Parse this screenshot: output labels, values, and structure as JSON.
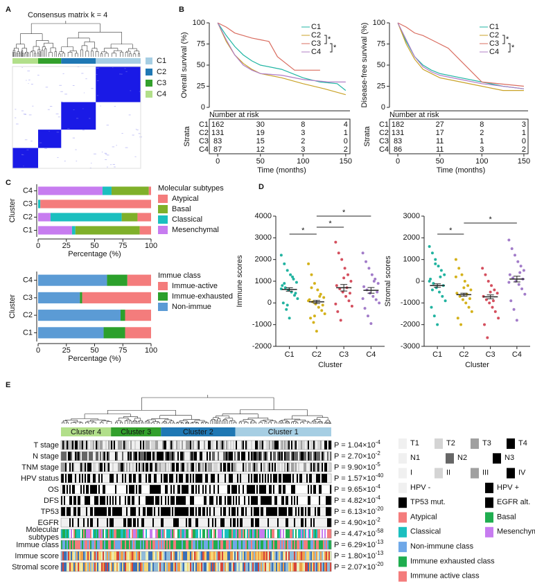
{
  "chart_data": [
    {
      "type": "heatmap",
      "panel": "A",
      "title": "Consensus matrix k = 4",
      "categories": [
        "C1",
        "C2",
        "C3",
        "C4"
      ],
      "colors": [
        "#a6cee3",
        "#1f78b4",
        "#33a02c",
        "#b2df8a"
      ]
    },
    {
      "type": "line",
      "panel": "B",
      "ylabel": "Overall survival (%)",
      "xlabel": "Time (months)",
      "xlim": [
        -5,
        155
      ],
      "xticks": [
        0,
        50,
        100,
        150
      ],
      "ylim": [
        0,
        100
      ],
      "yticks": [
        0,
        25,
        50,
        75,
        100
      ],
      "series": [
        {
          "name": "C1",
          "color": "#1fb5a3",
          "x": [
            0,
            10,
            20,
            30,
            40,
            50,
            75,
            100,
            120,
            140,
            150
          ],
          "values": [
            100,
            85,
            72,
            62,
            55,
            50,
            45,
            35,
            30,
            28,
            20
          ]
        },
        {
          "name": "C2",
          "color": "#c9a227",
          "x": [
            0,
            10,
            20,
            30,
            40,
            50,
            75,
            100,
            125,
            150
          ],
          "values": [
            100,
            78,
            62,
            52,
            45,
            40,
            35,
            28,
            22,
            15
          ]
        },
        {
          "name": "C3",
          "color": "#d96c5f",
          "x": [
            0,
            10,
            20,
            30,
            40,
            50,
            60,
            70,
            90,
            120
          ],
          "values": [
            100,
            95,
            88,
            85,
            82,
            80,
            78,
            60,
            44,
            44
          ]
        },
        {
          "name": "C4",
          "color": "#b07cc6",
          "x": [
            0,
            10,
            20,
            30,
            40,
            50,
            75,
            100,
            130,
            150
          ],
          "values": [
            100,
            80,
            62,
            50,
            44,
            40,
            38,
            33,
            30,
            30
          ]
        }
      ],
      "annotations": [
        "*",
        "*"
      ],
      "risk_title": "Number at risk",
      "risk_label": "Strata",
      "risk": [
        [
          162,
          30,
          8,
          4
        ],
        [
          131,
          19,
          3,
          1
        ],
        [
          83,
          15,
          2,
          0
        ],
        [
          87,
          12,
          3,
          2
        ]
      ]
    },
    {
      "type": "line",
      "ylabel": "Disease-free survival (%)",
      "xlabel": "Time (months)",
      "xlim": [
        -5,
        155
      ],
      "xticks": [
        0,
        50,
        100,
        150
      ],
      "ylim": [
        0,
        100
      ],
      "yticks": [
        0,
        25,
        50,
        75,
        100
      ],
      "series": [
        {
          "name": "C1",
          "color": "#1fb5a3",
          "x": [
            0,
            10,
            20,
            30,
            40,
            50,
            75,
            100,
            125,
            150
          ],
          "values": [
            100,
            78,
            60,
            50,
            44,
            40,
            35,
            30,
            25,
            22
          ]
        },
        {
          "name": "C2",
          "color": "#c9a227",
          "x": [
            0,
            10,
            20,
            30,
            40,
            50,
            75,
            100,
            125,
            150
          ],
          "values": [
            100,
            75,
            57,
            45,
            40,
            35,
            30,
            25,
            20,
            20
          ]
        },
        {
          "name": "C3",
          "color": "#d96c5f",
          "x": [
            0,
            10,
            20,
            30,
            40,
            50,
            60,
            75,
            100,
            150
          ],
          "values": [
            100,
            95,
            88,
            85,
            80,
            75,
            70,
            55,
            30,
            25
          ]
        },
        {
          "name": "C4",
          "color": "#b07cc6",
          "x": [
            0,
            10,
            20,
            30,
            40,
            50,
            75,
            100,
            150
          ],
          "values": [
            100,
            80,
            60,
            48,
            42,
            38,
            33,
            28,
            22
          ]
        }
      ],
      "annotations": [
        "*",
        "*"
      ],
      "risk_title": "Number at risk",
      "risk_label": "Strata",
      "risk": [
        [
          182,
          27,
          8,
          3
        ],
        [
          131,
          17,
          2,
          1
        ],
        [
          83,
          11,
          1,
          0
        ],
        [
          86,
          11,
          3,
          2
        ]
      ]
    },
    {
      "type": "stacked-bar",
      "panel": "C",
      "legend_title": "Molecular subtypes",
      "xlabel": "Percentage (%)",
      "ylabel": "Cluster",
      "categories": [
        "C1",
        "C2",
        "C3",
        "C4"
      ],
      "xlim": [
        0,
        100
      ],
      "xticks": [
        0,
        25,
        50,
        75,
        100
      ],
      "series": [
        {
          "name": "Atypical",
          "color": "#f47c7c",
          "values": [
            10,
            12,
            98,
            2
          ]
        },
        {
          "name": "Basal",
          "color": "#7fb02a",
          "values": [
            57,
            14,
            0,
            33
          ]
        },
        {
          "name": "Classical",
          "color": "#1bbfbf",
          "values": [
            3,
            63,
            2,
            8
          ]
        },
        {
          "name": "Mesenchymal",
          "color": "#c77cf0",
          "values": [
            30,
            11,
            0,
            57
          ]
        }
      ]
    },
    {
      "type": "stacked-bar",
      "legend_title": "Immue class",
      "xlabel": "Percentage (%)",
      "ylabel": "Cluster",
      "categories": [
        "C1",
        "C2",
        "C3",
        "C4"
      ],
      "xlim": [
        0,
        100
      ],
      "xticks": [
        0,
        25,
        50,
        75,
        100
      ],
      "series": [
        {
          "name": "Immue-active",
          "color": "#f47c7c",
          "values": [
            23,
            23,
            61,
            21
          ]
        },
        {
          "name": "Immue-exhausted",
          "color": "#2ca02c",
          "values": [
            19,
            4,
            2,
            18
          ]
        },
        {
          "name": "Non-immue",
          "color": "#5b9bd5",
          "values": [
            58,
            73,
            37,
            61
          ]
        }
      ]
    },
    {
      "type": "dot",
      "panel": "D",
      "ylabel": "Immune scores",
      "xlabel": "Cluster",
      "categories": [
        "C1",
        "C2",
        "C3",
        "C4"
      ],
      "colors": [
        "#21b3a0",
        "#d4b21c",
        "#d44f5e",
        "#a27cc9"
      ],
      "ylim": [
        -2000,
        4000
      ],
      "yticks": [
        -2000,
        -1000,
        0,
        1000,
        2000,
        3000,
        4000
      ],
      "points": [
        [
          2200,
          1800,
          1500,
          1300,
          1100,
          950,
          800,
          700,
          600,
          500,
          350,
          200,
          0,
          -300,
          -700,
          1200,
          450,
          650,
          900,
          -100
        ],
        [
          1800,
          1300,
          900,
          600,
          400,
          250,
          150,
          50,
          -50,
          -200,
          -350,
          -500,
          -700,
          -900,
          -1300,
          300,
          -100,
          100,
          700,
          -600
        ],
        [
          2800,
          2300,
          2000,
          1600,
          1300,
          1000,
          800,
          650,
          500,
          300,
          100,
          -150,
          -400,
          -800,
          1150,
          700,
          450,
          -50
        ],
        [
          2300,
          1900,
          1600,
          1300,
          1100,
          900,
          750,
          600,
          450,
          300,
          150,
          0,
          -250,
          -600,
          -950,
          1000,
          500,
          200
        ]
      ],
      "means": [
        620,
        50,
        700,
        580
      ],
      "errors": [
        80,
        70,
        150,
        130
      ],
      "comparisons": [
        {
          "pair": [
            "C1",
            "C2"
          ],
          "label": "*"
        },
        {
          "pair": [
            "C2",
            "C3"
          ],
          "label": "*"
        },
        {
          "pair": [
            "C2",
            "C4"
          ],
          "label": "*"
        }
      ]
    },
    {
      "type": "dot",
      "ylabel": "Stromal scores",
      "xlabel": "Cluster",
      "categories": [
        "C1",
        "C2",
        "C3",
        "C4"
      ],
      "colors": [
        "#21b3a0",
        "#d4b21c",
        "#d44f5e",
        "#a27cc9"
      ],
      "ylim": [
        -3000,
        3000
      ],
      "yticks": [
        -3000,
        -2000,
        -1000,
        0,
        1000,
        2000,
        3000
      ],
      "points": [
        [
          1600,
          1300,
          1000,
          700,
          500,
          300,
          100,
          -100,
          -300,
          -500,
          -700,
          -900,
          -1200,
          -1600,
          -2000,
          200,
          -200,
          0,
          -400,
          800
        ],
        [
          1000,
          600,
          300,
          0,
          -200,
          -400,
          -550,
          -700,
          -850,
          -1000,
          -1200,
          -1400,
          -1700,
          -2000,
          -300,
          -600,
          -800,
          200
        ],
        [
          600,
          300,
          0,
          -200,
          -400,
          -550,
          -700,
          -850,
          -1000,
          -1200,
          -1400,
          -1700,
          -2000,
          -2600,
          -500,
          -900
        ],
        [
          1900,
          1500,
          1200,
          900,
          700,
          500,
          300,
          150,
          0,
          -150,
          -350,
          -600,
          -900,
          -1300,
          -1800,
          400,
          100,
          -50
        ]
      ],
      "means": [
        -200,
        -620,
        -720,
        100
      ],
      "errors": [
        80,
        70,
        90,
        130
      ],
      "comparisons": [
        {
          "pair": [
            "C1",
            "C2"
          ],
          "label": "*"
        },
        {
          "pair": [
            "C2",
            "C4"
          ],
          "label": "*"
        }
      ]
    },
    {
      "type": "tracks",
      "panel": "E",
      "clusters": [
        {
          "label": "Cluster 4",
          "color": "#b2df8a"
        },
        {
          "label": "Cluster 3",
          "color": "#33a02c"
        },
        {
          "label": "Cluster 2",
          "color": "#1f78b4"
        },
        {
          "label": "Cluster 1",
          "color": "#a6cee3"
        }
      ],
      "rows": [
        {
          "label": "T stage",
          "p": {
            "text": "P = 1.04×10",
            "exp": "-4"
          }
        },
        {
          "label": "N stage",
          "p": {
            "text": "P = 2.70×10",
            "exp": "-2"
          }
        },
        {
          "label": "TNM stage",
          "p": {
            "text": "P = 9.90×10",
            "exp": "-5"
          }
        },
        {
          "label": "HPV status",
          "p": {
            "text": "P = 1.57×10",
            "exp": "-40"
          }
        },
        {
          "label": "OS",
          "p": {
            "text": "P = 9.65×10",
            "exp": "-4"
          }
        },
        {
          "label": "DFS",
          "p": {
            "text": "P = 4.82×10",
            "exp": "-4"
          }
        },
        {
          "label": "TP53",
          "p": {
            "text": "P = 6.13×10",
            "exp": "-20"
          }
        },
        {
          "label": "EGFR",
          "p": {
            "text": "P = 4.90×10",
            "exp": "-2"
          }
        },
        {
          "label": [
            "Molecular",
            "subtypes"
          ],
          "p": {
            "text": "P = 4.47×10",
            "exp": "-58"
          }
        },
        {
          "label": "Immue class",
          "p": {
            "text": "P = 6.29×10",
            "exp": "-13"
          }
        },
        {
          "label": "Immue score",
          "p": {
            "text": "P = 1.80×10",
            "exp": "-13"
          }
        },
        {
          "label": "Stromal score",
          "p": {
            "text": "P = 2.07×10",
            "exp": "-20"
          }
        }
      ],
      "legend": [
        [
          {
            "label": "T1",
            "color": "#f0f0f0"
          },
          {
            "label": "T2",
            "color": "#d4d4d4"
          },
          {
            "label": "T3",
            "color": "#a0a0a0"
          },
          {
            "label": "T4",
            "color": "#000000"
          }
        ],
        [
          {
            "label": "N1",
            "color": "#f0f0f0"
          },
          {
            "label": "N2",
            "color": "#666666"
          },
          {
            "label": "N3",
            "color": "#000000"
          }
        ],
        [
          {
            "label": "I",
            "color": "#f0f0f0"
          },
          {
            "label": "II",
            "color": "#d4d4d4"
          },
          {
            "label": "III",
            "color": "#a0a0a0"
          },
          {
            "label": "IV",
            "color": "#000000"
          }
        ],
        [
          {
            "label": "HPV -",
            "color": "#f0f0f0"
          },
          {
            "label": "HPV +",
            "color": "#000000"
          }
        ],
        [
          {
            "label": "TP53 mut.",
            "color": "#000000"
          },
          {
            "label": "EGFR alt.",
            "color": "#000000"
          }
        ],
        [
          {
            "label": "Atypical",
            "color": "#f47c7c"
          },
          {
            "label": "Basal",
            "color": "#1fad4f"
          }
        ],
        [
          {
            "label": "Classical",
            "color": "#1bbfbf"
          },
          {
            "label": "Mesenchymal",
            "color": "#c77cf0"
          }
        ],
        [
          {
            "label": "Non-immune class",
            "color": "#6fa8e8"
          }
        ],
        [
          {
            "label": "Immune exhausted class",
            "color": "#1fad4f"
          }
        ],
        [
          {
            "label": "Immune active class",
            "color": "#f47c7c"
          }
        ]
      ]
    }
  ]
}
